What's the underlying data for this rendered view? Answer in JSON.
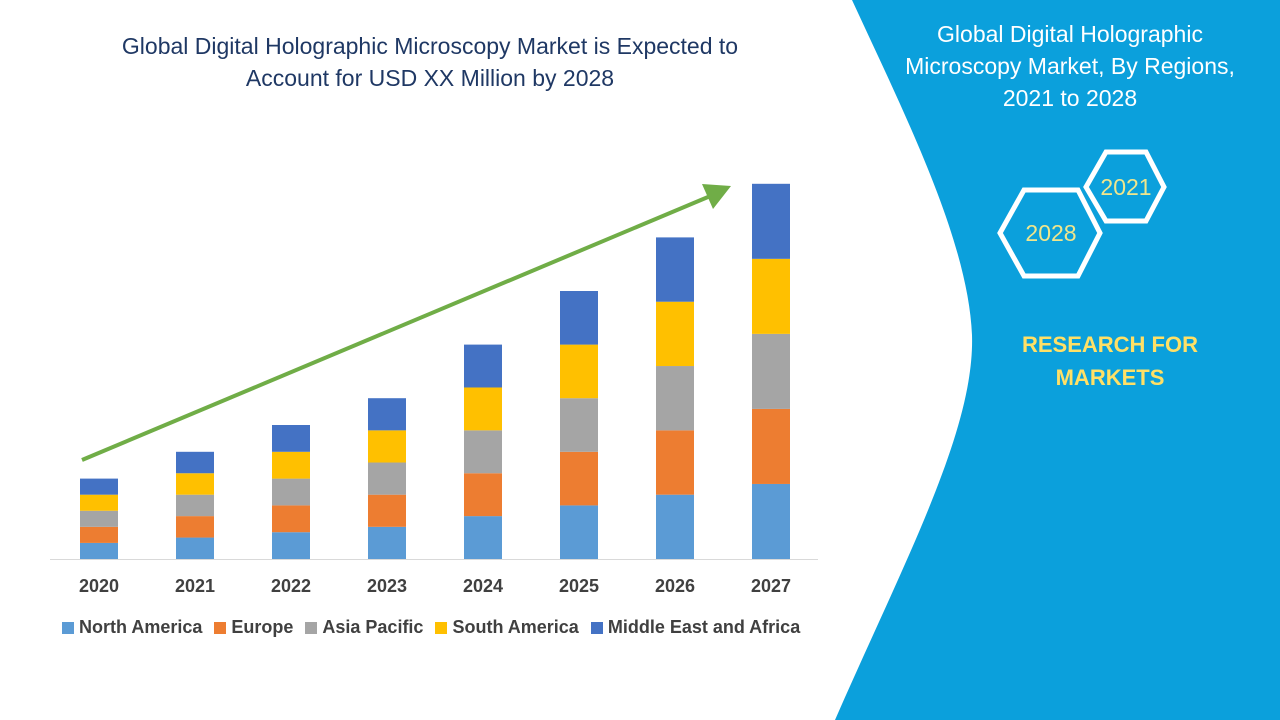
{
  "title_lines": [
    "Global Digital Holographic Microscopy Market is Expected to",
    "Account for USD XX Million by 2028"
  ],
  "side_panel": {
    "title_lines": [
      "Global Digital Holographic",
      "Microscopy Market, By Regions,",
      "2021 to 2028"
    ],
    "hex_labels": [
      "2021",
      "2028"
    ],
    "brand_lines": [
      "RESEARCH FOR",
      "MARKETS"
    ],
    "background_color": "#0ba0dc",
    "hex_text_color": "#f0e68c"
  },
  "chart_data": {
    "type": "bar",
    "stacked": true,
    "categories": [
      "2020",
      "2021",
      "2022",
      "2023",
      "2024",
      "2025",
      "2026",
      "2027"
    ],
    "series": [
      {
        "name": "North America",
        "color": "#5b9bd5",
        "values": [
          3,
          4,
          5,
          6,
          8,
          10,
          12,
          14
        ]
      },
      {
        "name": "Europe",
        "color": "#ed7d31",
        "values": [
          3,
          4,
          5,
          6,
          8,
          10,
          12,
          14
        ]
      },
      {
        "name": "Asia Pacific",
        "color": "#a5a5a5",
        "values": [
          3,
          4,
          5,
          6,
          8,
          10,
          12,
          14
        ]
      },
      {
        "name": "South America",
        "color": "#ffc000",
        "values": [
          3,
          4,
          5,
          6,
          8,
          10,
          12,
          14
        ]
      },
      {
        "name": "Middle East and Africa",
        "color": "#4472c4",
        "values": [
          3,
          4,
          5,
          6,
          8,
          10,
          12,
          14
        ]
      }
    ],
    "ylim": [
      0,
      70
    ],
    "grid": false,
    "y_axis_shown": false,
    "legend_position": "bottom",
    "trend_arrow_color": "#70ad47"
  }
}
